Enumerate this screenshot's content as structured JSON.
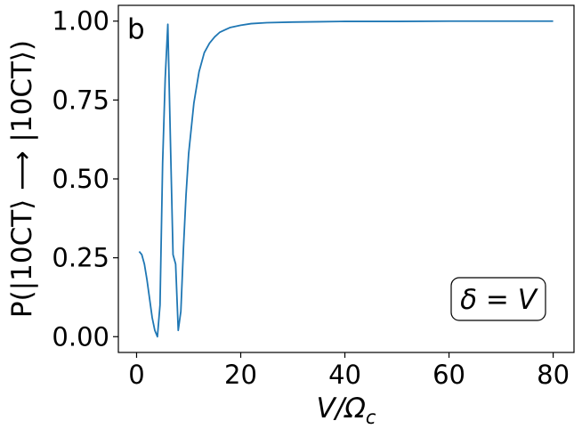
{
  "chart_data": {
    "type": "line",
    "panel_label": "b",
    "xlabel_base": "V/Ω",
    "xlabel_sub": "c",
    "ylabel": "P(|10CT⟩ ⟶ |10CT⟩)",
    "annotation": "δ = V",
    "xlim": [
      -3.5,
      84
    ],
    "ylim": [
      -0.05,
      1.05
    ],
    "x_ticks": [
      0,
      20,
      40,
      60,
      80
    ],
    "x_tick_labels": [
      "0",
      "20",
      "40",
      "60",
      "80"
    ],
    "y_ticks": [
      0.0,
      0.25,
      0.5,
      0.75,
      1.0
    ],
    "y_tick_labels": [
      "0.00",
      "0.25",
      "0.50",
      "0.75",
      "1.00"
    ],
    "grid": false,
    "series": [
      {
        "color": "#1f77b4",
        "x": [
          0.5,
          1.0,
          1.5,
          2.0,
          2.5,
          3.0,
          3.5,
          4.0,
          4.5,
          5.0,
          5.5,
          6.0,
          6.5,
          7.0,
          7.5,
          8.0,
          8.5,
          9.0,
          9.5,
          10.0,
          11.0,
          12.0,
          13.0,
          14.0,
          15.0,
          16.0,
          18.0,
          20.0,
          22.0,
          25.0,
          30.0,
          35.0,
          40.0,
          50.0,
          60.0,
          70.0,
          80.0
        ],
        "y": [
          0.27,
          0.26,
          0.23,
          0.18,
          0.12,
          0.06,
          0.02,
          0.0,
          0.1,
          0.55,
          0.82,
          0.99,
          0.62,
          0.26,
          0.23,
          0.02,
          0.08,
          0.28,
          0.45,
          0.58,
          0.74,
          0.84,
          0.9,
          0.93,
          0.95,
          0.965,
          0.98,
          0.987,
          0.992,
          0.995,
          0.997,
          0.998,
          0.999,
          0.999,
          1.0,
          1.0,
          1.0
        ]
      }
    ]
  }
}
